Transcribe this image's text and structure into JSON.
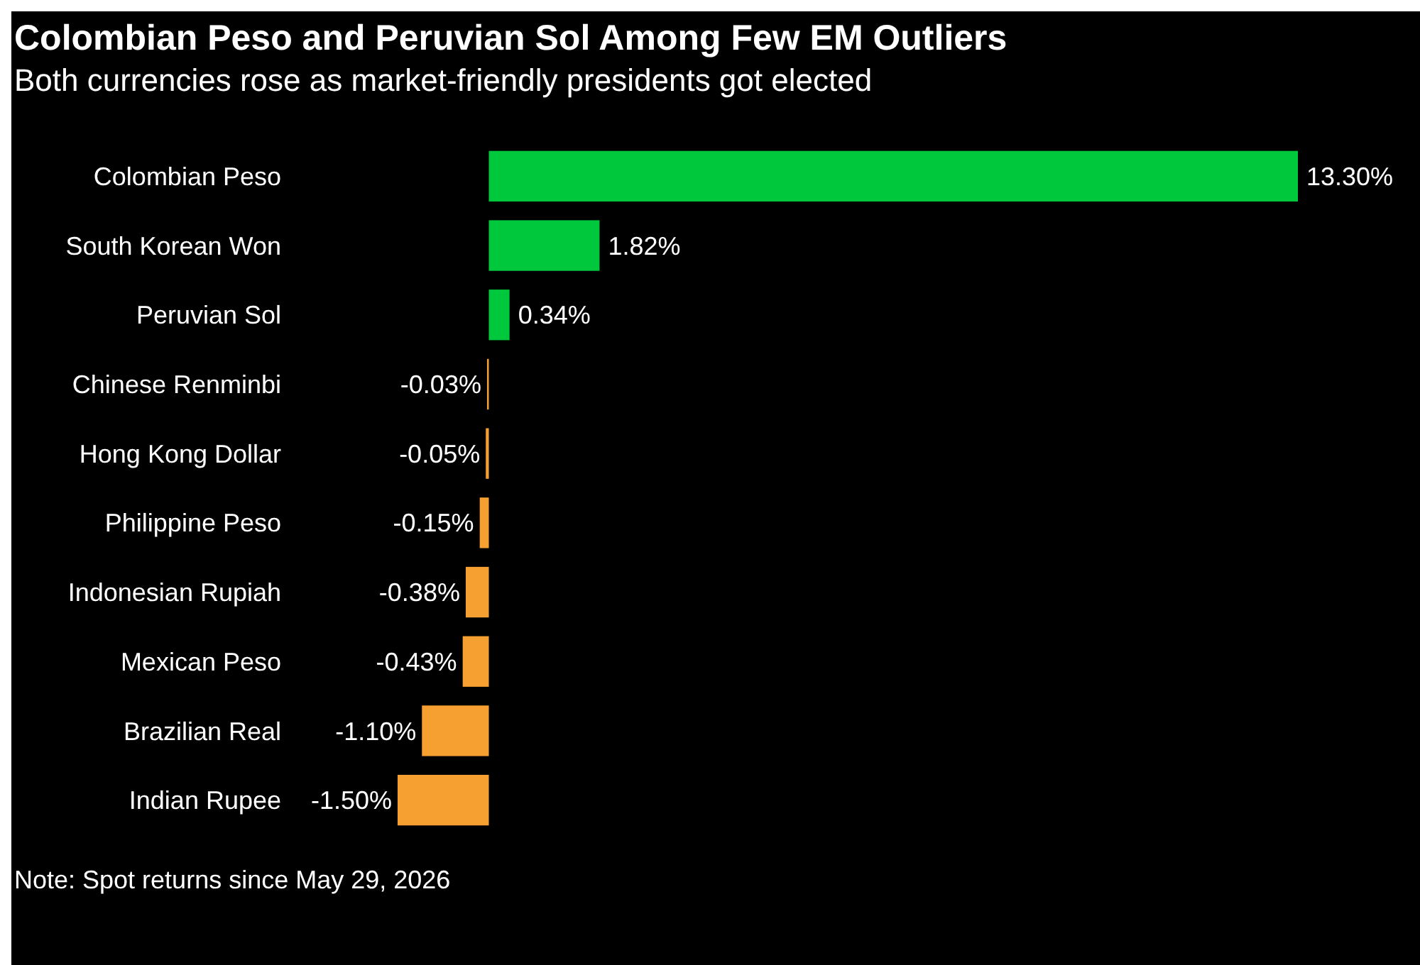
{
  "chart_data": {
    "type": "bar",
    "orientation": "horizontal",
    "title": "Colombian Peso and Peruvian Sol Among Few EM Outliers",
    "subtitle": "Both currencies rose as market-friendly presidents got elected",
    "categories": [
      "Colombian Peso",
      "South Korean Won",
      "Peruvian Sol",
      "Chinese Renminbi",
      "Hong Kong Dollar",
      "Philippine Peso",
      "Indonesian Rupiah",
      "Mexican Peso",
      "Brazilian Real",
      "Indian Rupee"
    ],
    "values": [
      13.3,
      1.82,
      0.34,
      -0.03,
      -0.05,
      -0.15,
      -0.38,
      -0.43,
      -1.1,
      -1.5
    ],
    "colors": [
      "#00c83c",
      "#00c83c",
      "#00c83c",
      "#f5a030",
      "#f5a030",
      "#f5a030",
      "#f5a030",
      "#f5a030",
      "#f5a030",
      "#f5a030"
    ],
    "value_labels": [
      "13.30%",
      "1.82%",
      "0.34%",
      "-0.03%",
      "-0.05%",
      "-0.15%",
      "-0.38%",
      "-0.43%",
      "-1.10%",
      "-1.50%"
    ],
    "annotations": [
      "Note: Spot returns since May 29, 2026"
    ]
  }
}
